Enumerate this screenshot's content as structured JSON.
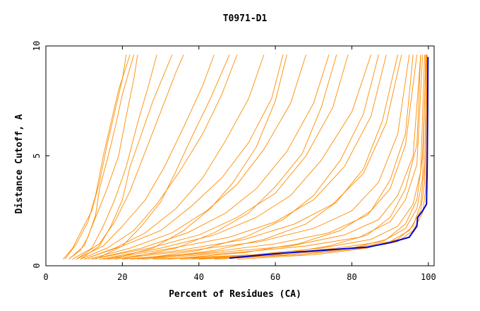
{
  "chart_data": {
    "type": "line",
    "title": "T0971-D1",
    "xlabel": "Percent of Residues (CA)",
    "ylabel": "Distance Cutoff, A",
    "xlim": [
      0,
      101.5
    ],
    "ylim": [
      0,
      10
    ],
    "xticks": [
      0,
      20,
      40,
      60,
      80,
      100
    ],
    "yticks": [
      0,
      5,
      10
    ],
    "grid": false,
    "legend": "none",
    "colors": {
      "models": "#ff8c00",
      "highlight": "#0000cd"
    },
    "highlight_series": {
      "points": [
        [
          48,
          0.35
        ],
        [
          60,
          0.55
        ],
        [
          72,
          0.7
        ],
        [
          84,
          0.85
        ],
        [
          90,
          1.05
        ],
        [
          95,
          1.3
        ],
        [
          97,
          1.8
        ],
        [
          97.2,
          2.2
        ],
        [
          98.5,
          2.5
        ],
        [
          99.5,
          2.8
        ],
        [
          99.7,
          4.5
        ],
        [
          99.8,
          7
        ],
        [
          99.9,
          9.5
        ]
      ]
    },
    "series": [
      {
        "points": [
          [
            4.5,
            0.3
          ],
          [
            7,
            0.8
          ],
          [
            9,
            1.5
          ],
          [
            12,
            2.5
          ],
          [
            14,
            3.8
          ],
          [
            16,
            5.5
          ],
          [
            18,
            7
          ],
          [
            20,
            8.5
          ],
          [
            21,
            9.6
          ]
        ]
      },
      {
        "points": [
          [
            5,
            0.3
          ],
          [
            8,
            1.0
          ],
          [
            11,
            2.0
          ],
          [
            13,
            3.2
          ],
          [
            15,
            5.0
          ],
          [
            17,
            6.5
          ],
          [
            19,
            8.0
          ],
          [
            22,
            9.6
          ]
        ]
      },
      {
        "points": [
          [
            6,
            0.3
          ],
          [
            10,
            0.9
          ],
          [
            13,
            2.2
          ],
          [
            16,
            3.5
          ],
          [
            19,
            5.0
          ],
          [
            21,
            6.8
          ],
          [
            23,
            8.5
          ],
          [
            24,
            9.6
          ]
        ]
      },
      {
        "points": [
          [
            7,
            0.3
          ],
          [
            12,
            0.8
          ],
          [
            15,
            1.8
          ],
          [
            18,
            3.0
          ],
          [
            21,
            4.5
          ],
          [
            24,
            6.5
          ],
          [
            27,
            8.3
          ],
          [
            29,
            9.6
          ]
        ]
      },
      {
        "points": [
          [
            8,
            0.3
          ],
          [
            14,
            1.0
          ],
          [
            18,
            2.0
          ],
          [
            22,
            3.4
          ],
          [
            26,
            5.2
          ],
          [
            30,
            7.0
          ],
          [
            34,
            8.8
          ],
          [
            36,
            9.6
          ]
        ]
      },
      {
        "points": [
          [
            8,
            0.3
          ],
          [
            15,
            0.9
          ],
          [
            20,
            1.8
          ],
          [
            26,
            3.0
          ],
          [
            31,
            4.5
          ],
          [
            36,
            6.3
          ],
          [
            41,
            8.2
          ],
          [
            44,
            9.6
          ]
        ]
      },
      {
        "points": [
          [
            9,
            0.3
          ],
          [
            16,
            0.8
          ],
          [
            23,
            1.6
          ],
          [
            29,
            2.8
          ],
          [
            35,
            4.3
          ],
          [
            41,
            6.0
          ],
          [
            46,
            7.8
          ],
          [
            50,
            9.6
          ]
        ]
      },
      {
        "points": [
          [
            10,
            0.3
          ],
          [
            18,
            0.8
          ],
          [
            26,
            1.5
          ],
          [
            34,
            2.6
          ],
          [
            41,
            4.0
          ],
          [
            47,
            5.7
          ],
          [
            53,
            7.6
          ],
          [
            57,
            9.6
          ]
        ]
      },
      {
        "points": [
          [
            10,
            0.3
          ],
          [
            20,
            0.9
          ],
          [
            30,
            1.6
          ],
          [
            38,
            2.7
          ],
          [
            46,
            4.0
          ],
          [
            53,
            5.6
          ],
          [
            59,
            7.6
          ],
          [
            62,
            9.6
          ]
        ]
      },
      {
        "points": [
          [
            11,
            0.3
          ],
          [
            22,
            0.8
          ],
          [
            33,
            1.5
          ],
          [
            42,
            2.5
          ],
          [
            50,
            3.7
          ],
          [
            57,
            5.3
          ],
          [
            64,
            7.4
          ],
          [
            68,
            9.6
          ]
        ]
      },
      {
        "points": [
          [
            12,
            0.3
          ],
          [
            25,
            0.8
          ],
          [
            37,
            1.5
          ],
          [
            47,
            2.4
          ],
          [
            55,
            3.5
          ],
          [
            63,
            5.2
          ],
          [
            70,
            7.4
          ],
          [
            74,
            9.6
          ]
        ]
      },
      {
        "points": [
          [
            12,
            0.3
          ],
          [
            27,
            0.8
          ],
          [
            40,
            1.4
          ],
          [
            50,
            2.2
          ],
          [
            60,
            3.3
          ],
          [
            68,
            5.0
          ],
          [
            75,
            7.2
          ],
          [
            79,
            9.6
          ]
        ]
      },
      {
        "points": [
          [
            14,
            0.3
          ],
          [
            30,
            0.8
          ],
          [
            44,
            1.4
          ],
          [
            55,
            2.2
          ],
          [
            64,
            3.2
          ],
          [
            72,
            4.8
          ],
          [
            80,
            7.0
          ],
          [
            85,
            9.6
          ]
        ]
      },
      {
        "points": [
          [
            15,
            0.3
          ],
          [
            33,
            0.8
          ],
          [
            48,
            1.3
          ],
          [
            60,
            2.0
          ],
          [
            70,
            3.0
          ],
          [
            78,
            4.5
          ],
          [
            85,
            6.8
          ],
          [
            89,
            9.6
          ]
        ]
      },
      {
        "points": [
          [
            16,
            0.3
          ],
          [
            35,
            0.7
          ],
          [
            52,
            1.2
          ],
          [
            65,
            1.9
          ],
          [
            75,
            2.8
          ],
          [
            83,
            4.2
          ],
          [
            89,
            6.5
          ],
          [
            93,
            9.6
          ]
        ]
      },
      {
        "points": [
          [
            18,
            0.3
          ],
          [
            38,
            0.7
          ],
          [
            56,
            1.1
          ],
          [
            70,
            1.7
          ],
          [
            80,
            2.5
          ],
          [
            87,
            3.8
          ],
          [
            92,
            6.0
          ],
          [
            95,
            9.6
          ]
        ]
      },
      {
        "points": [
          [
            20,
            0.3
          ],
          [
            42,
            0.6
          ],
          [
            60,
            1.0
          ],
          [
            74,
            1.5
          ],
          [
            84,
            2.3
          ],
          [
            90,
            3.5
          ],
          [
            94,
            5.5
          ],
          [
            97,
            9.6
          ]
        ]
      },
      {
        "points": [
          [
            22,
            0.3
          ],
          [
            45,
            0.6
          ],
          [
            64,
            0.9
          ],
          [
            78,
            1.4
          ],
          [
            87,
            2.1
          ],
          [
            92,
            3.2
          ],
          [
            96,
            5.0
          ],
          [
            98,
            9.6
          ]
        ]
      },
      {
        "points": [
          [
            25,
            0.3
          ],
          [
            50,
            0.6
          ],
          [
            68,
            0.9
          ],
          [
            82,
            1.3
          ],
          [
            90,
            2.0
          ],
          [
            94,
            3.0
          ],
          [
            97,
            4.6
          ],
          [
            98.5,
            9.6
          ]
        ]
      },
      {
        "points": [
          [
            28,
            0.3
          ],
          [
            54,
            0.5
          ],
          [
            72,
            0.8
          ],
          [
            85,
            1.2
          ],
          [
            92,
            1.8
          ],
          [
            96,
            2.8
          ],
          [
            98,
            4.3
          ],
          [
            99,
            9.6
          ]
        ]
      },
      {
        "points": [
          [
            30,
            0.3
          ],
          [
            58,
            0.5
          ],
          [
            76,
            0.8
          ],
          [
            88,
            1.1
          ],
          [
            94,
            1.7
          ],
          [
            97,
            2.6
          ],
          [
            98.5,
            4.0
          ],
          [
            99.3,
            9.6
          ]
        ]
      },
      {
        "points": [
          [
            35,
            0.3
          ],
          [
            62,
            0.5
          ],
          [
            80,
            0.8
          ],
          [
            90,
            1.1
          ],
          [
            95,
            1.6
          ],
          [
            98,
            2.5
          ],
          [
            99,
            3.8
          ],
          [
            99.5,
            9.6
          ]
        ]
      },
      {
        "points": [
          [
            40,
            0.3
          ],
          [
            66,
            0.5
          ],
          [
            83,
            0.8
          ],
          [
            92,
            1.1
          ],
          [
            96,
            1.6
          ],
          [
            98.5,
            2.4
          ],
          [
            99.3,
            3.5
          ],
          [
            99.7,
            9.6
          ]
        ]
      },
      {
        "points": [
          [
            6,
            0.3
          ],
          [
            9,
            0.7
          ],
          [
            11,
            1.3
          ],
          [
            13,
            2.3
          ],
          [
            14,
            3.5
          ],
          [
            16,
            4.8
          ],
          [
            18,
            6.2
          ],
          [
            20,
            7.8
          ],
          [
            23,
            9.6
          ]
        ]
      },
      {
        "points": [
          [
            9,
            0.3
          ],
          [
            14,
            0.9
          ],
          [
            17,
            1.8
          ],
          [
            20,
            3.0
          ],
          [
            22,
            4.5
          ],
          [
            25,
            6.0
          ],
          [
            28,
            7.5
          ],
          [
            33,
            9.6
          ]
        ]
      },
      {
        "points": [
          [
            13,
            0.3
          ],
          [
            20,
            0.9
          ],
          [
            25,
            1.8
          ],
          [
            30,
            2.9
          ],
          [
            34,
            4.3
          ],
          [
            38,
            5.8
          ],
          [
            43,
            7.6
          ],
          [
            48,
            9.6
          ]
        ]
      },
      {
        "points": [
          [
            17,
            0.3
          ],
          [
            28,
            0.8
          ],
          [
            36,
            1.6
          ],
          [
            43,
            2.6
          ],
          [
            49,
            3.8
          ],
          [
            55,
            5.4
          ],
          [
            60,
            7.5
          ],
          [
            63,
            9.6
          ]
        ]
      },
      {
        "points": [
          [
            20,
            0.3
          ],
          [
            34,
            0.8
          ],
          [
            44,
            1.5
          ],
          [
            53,
            2.4
          ],
          [
            60,
            3.6
          ],
          [
            67,
            5.1
          ],
          [
            72,
            7.2
          ],
          [
            76,
            9.6
          ]
        ]
      },
      {
        "points": [
          [
            24,
            0.3
          ],
          [
            40,
            0.7
          ],
          [
            52,
            1.3
          ],
          [
            62,
            2.1
          ],
          [
            70,
            3.2
          ],
          [
            77,
            4.8
          ],
          [
            83,
            6.9
          ],
          [
            87,
            9.6
          ]
        ]
      },
      {
        "points": [
          [
            26,
            0.3
          ],
          [
            44,
            0.7
          ],
          [
            57,
            1.2
          ],
          [
            68,
            1.9
          ],
          [
            76,
            2.9
          ],
          [
            83,
            4.4
          ],
          [
            88,
            6.6
          ],
          [
            92,
            9.6
          ]
        ]
      },
      {
        "points": [
          [
            32,
            0.3
          ],
          [
            52,
            0.6
          ],
          [
            66,
            1.0
          ],
          [
            77,
            1.6
          ],
          [
            85,
            2.5
          ],
          [
            90,
            3.9
          ],
          [
            94,
            6.0
          ],
          [
            96,
            9.6
          ]
        ]
      },
      {
        "points": [
          [
            38,
            0.3
          ],
          [
            60,
            0.5
          ],
          [
            74,
            0.9
          ],
          [
            84,
            1.4
          ],
          [
            90,
            2.2
          ],
          [
            94,
            3.5
          ],
          [
            97,
            5.5
          ],
          [
            98,
            9.6
          ]
        ]
      },
      {
        "points": [
          [
            44,
            0.3
          ],
          [
            66,
            0.5
          ],
          [
            80,
            0.8
          ],
          [
            89,
            1.2
          ],
          [
            94,
            1.9
          ],
          [
            97,
            3.0
          ],
          [
            98.5,
            5.0
          ],
          [
            99.4,
            9.6
          ]
        ]
      },
      {
        "points": [
          [
            50,
            0.3
          ],
          [
            70,
            0.5
          ],
          [
            84,
            0.8
          ],
          [
            92,
            1.2
          ],
          [
            96,
            1.8
          ],
          [
            98,
            2.8
          ],
          [
            99,
            4.6
          ],
          [
            99.6,
            9.6
          ]
        ]
      }
    ]
  }
}
